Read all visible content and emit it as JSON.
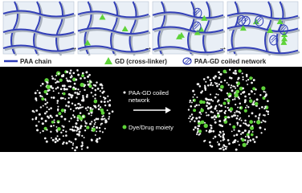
{
  "legend": {
    "items": [
      {
        "label": "PAA chain"
      },
      {
        "label": "GD (cross-linker)"
      },
      {
        "label": "PAA-GD coiled network"
      }
    ]
  },
  "bottom": {
    "labels": [
      "PAA-GD coiled network",
      "Dye/Drug moiety"
    ]
  }
}
